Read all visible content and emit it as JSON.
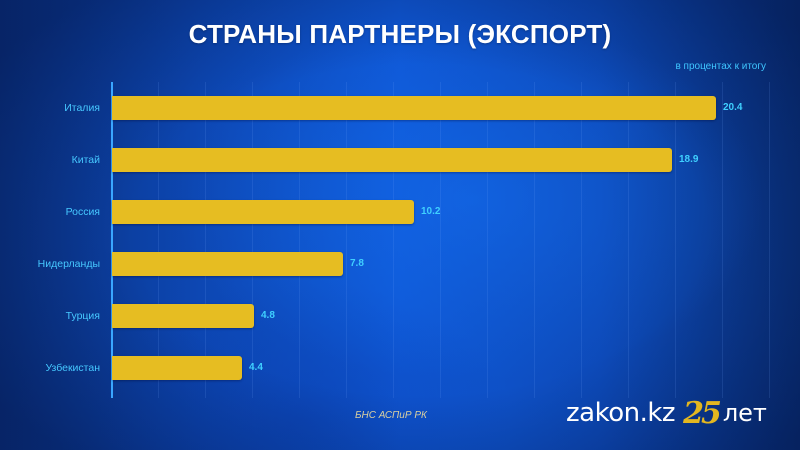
{
  "header": {
    "title": "СТРАНЫ ПАРТНЕРЫ (ЭКСПОРТ)",
    "units": "в процентах к итогу"
  },
  "footer": {
    "source": "БНС АСПиР РК",
    "brand_name": "zakon.kz",
    "brand_anniversary_number": "25",
    "brand_anniversary_word": "лет"
  },
  "colors": {
    "bar": "#e6bd22",
    "label": "#46c8ff",
    "value": "#3fd0ff",
    "axis": "#3aa6ff",
    "background": "#0f58d6",
    "title": "#ffffff",
    "brand_accent": "#e3b720"
  },
  "chart_data": {
    "type": "bar",
    "orientation": "horizontal",
    "title": "СТРАНЫ ПАРТНЕРЫ (ЭКСПОРТ)",
    "subtitle": "в процентах к итогу",
    "categories": [
      "Италия",
      "Китай",
      "Россия",
      "Нидерланды",
      "Турция",
      "Узбекистан"
    ],
    "values": [
      20.4,
      18.9,
      10.2,
      7.8,
      4.8,
      4.4
    ],
    "value_labels": [
      "20.4",
      "18.9",
      "10.2",
      "7.8",
      "4.8",
      "4.4"
    ],
    "xlabel": "",
    "ylabel": "",
    "xlim": [
      0,
      22
    ],
    "grid": true,
    "legend": "none",
    "source": "БНС АСПиР РК"
  }
}
